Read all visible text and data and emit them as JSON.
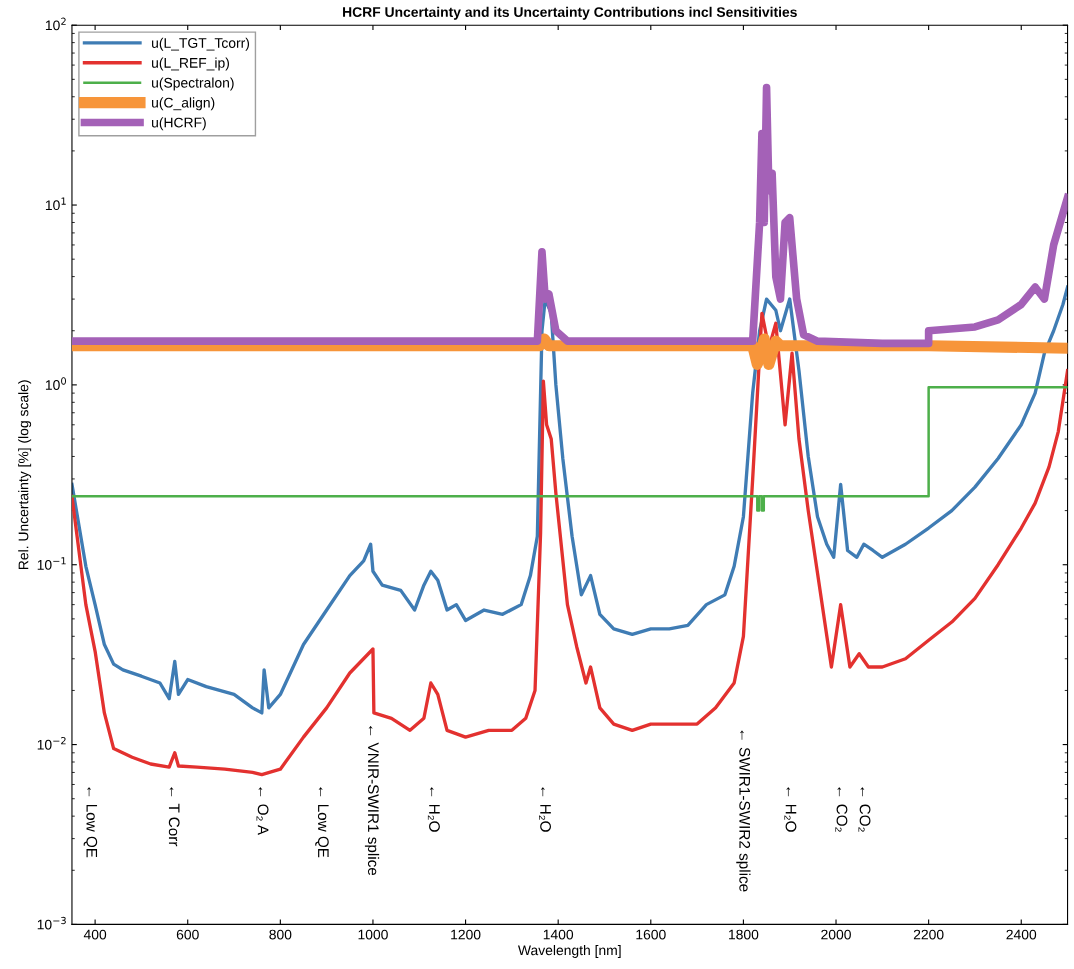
{
  "chart_data": {
    "type": "line",
    "title": "HCRF Uncertainty and its Uncertainty Contributions incl Sensitivities",
    "xlabel": "Wavelength [nm]",
    "ylabel": "Rel. Uncertainty [%] (log scale)",
    "log": "y",
    "grid": false,
    "legend": "top left",
    "marker": "none",
    "line_style": "solid",
    "xlim": [
      350,
      2500
    ],
    "xticks": [
      400,
      600,
      800,
      1000,
      1200,
      1400,
      1600,
      1800,
      2000,
      2200,
      2400
    ],
    "ylim": [
      0.001,
      100
    ],
    "yticks": [
      {
        "value": 0.001,
        "label": "10$^{−3}$"
      },
      {
        "value": 0.01,
        "label": "10$^{−2}$"
      },
      {
        "value": 0.1,
        "label": "10$^{−1}$"
      },
      {
        "value": 1,
        "label": "10$^{0}$"
      },
      {
        "value": 10,
        "label": "10$^{1}$"
      },
      {
        "value": 100,
        "label": "10$^{2}$"
      }
    ],
    "series": [
      {
        "name": "u(L_TGT_Tcorr)",
        "color": "#3f7cb4",
        "x": [
          350,
          380,
          400,
          420,
          440,
          460,
          500,
          540,
          560,
          572,
          580,
          600,
          640,
          700,
          740,
          760,
          765,
          775,
          800,
          850,
          900,
          950,
          980,
          995,
          1000,
          1020,
          1060,
          1090,
          1110,
          1125,
          1140,
          1160,
          1180,
          1200,
          1240,
          1280,
          1320,
          1340,
          1355,
          1365,
          1372,
          1385,
          1395,
          1410,
          1430,
          1450,
          1470,
          1490,
          1520,
          1560,
          1600,
          1640,
          1680,
          1720,
          1760,
          1780,
          1800,
          1820,
          1835,
          1850,
          1870,
          1880,
          1900,
          1920,
          1940,
          1960,
          1980,
          1995,
          2010,
          2025,
          2045,
          2060,
          2080,
          2100,
          2150,
          2200,
          2250,
          2300,
          2350,
          2400,
          2430,
          2450,
          2470,
          2490,
          2500
        ],
        "values": [
          0.28,
          0.098,
          0.06,
          0.036,
          0.028,
          0.026,
          0.024,
          0.022,
          0.018,
          0.029,
          0.019,
          0.023,
          0.021,
          0.019,
          0.016,
          0.015,
          0.026,
          0.016,
          0.019,
          0.036,
          0.056,
          0.087,
          0.105,
          0.13,
          0.092,
          0.077,
          0.072,
          0.056,
          0.077,
          0.092,
          0.082,
          0.056,
          0.06,
          0.049,
          0.056,
          0.053,
          0.06,
          0.087,
          0.144,
          2.0,
          3.0,
          2.5,
          1.0,
          0.39,
          0.144,
          0.068,
          0.087,
          0.053,
          0.044,
          0.041,
          0.044,
          0.044,
          0.046,
          0.06,
          0.068,
          0.098,
          0.185,
          0.9,
          2.0,
          3.0,
          2.6,
          2.0,
          3.0,
          1.2,
          0.4,
          0.185,
          0.13,
          0.11,
          0.28,
          0.12,
          0.11,
          0.13,
          0.12,
          0.11,
          0.13,
          0.16,
          0.2,
          0.27,
          0.39,
          0.6,
          0.9,
          1.5,
          2.0,
          2.8,
          3.5
        ]
      },
      {
        "name": "u(L_REF_ip)",
        "color": "#e3312f",
        "x": [
          350,
          380,
          400,
          420,
          440,
          480,
          520,
          560,
          572,
          580,
          620,
          680,
          740,
          760,
          800,
          850,
          900,
          950,
          1000,
          1002,
          1040,
          1080,
          1110,
          1125,
          1140,
          1160,
          1200,
          1250,
          1300,
          1330,
          1350,
          1362,
          1368,
          1375,
          1385,
          1395,
          1420,
          1440,
          1460,
          1470,
          1490,
          1520,
          1560,
          1600,
          1640,
          1700,
          1740,
          1780,
          1800,
          1820,
          1840,
          1855,
          1870,
          1890,
          1905,
          1920,
          1940,
          1960,
          1990,
          2010,
          2030,
          2050,
          2070,
          2100,
          2150,
          2200,
          2250,
          2300,
          2350,
          2400,
          2430,
          2460,
          2480,
          2500
        ],
        "values": [
          0.24,
          0.06,
          0.033,
          0.015,
          0.0095,
          0.0085,
          0.0078,
          0.0075,
          0.009,
          0.0076,
          0.0075,
          0.0073,
          0.007,
          0.0068,
          0.0073,
          0.011,
          0.016,
          0.025,
          0.034,
          0.015,
          0.014,
          0.012,
          0.014,
          0.022,
          0.019,
          0.012,
          0.011,
          0.012,
          0.012,
          0.014,
          0.02,
          0.15,
          1.05,
          0.6,
          0.5,
          0.25,
          0.06,
          0.035,
          0.022,
          0.027,
          0.016,
          0.013,
          0.012,
          0.013,
          0.013,
          0.013,
          0.016,
          0.022,
          0.04,
          0.3,
          2.5,
          1.6,
          2.2,
          0.6,
          1.5,
          0.5,
          0.2,
          0.09,
          0.027,
          0.06,
          0.027,
          0.032,
          0.027,
          0.027,
          0.03,
          0.038,
          0.048,
          0.065,
          0.1,
          0.16,
          0.22,
          0.35,
          0.55,
          1.2
        ]
      },
      {
        "name": "u(Spectralon)",
        "color": "#4daf4a",
        "x": [
          350,
          1830,
          1830,
          1834,
          1834,
          1840,
          1840,
          1844,
          1844,
          2200,
          2200,
          2500
        ],
        "values": [
          0.24,
          0.24,
          0.2,
          0.2,
          0.24,
          0.24,
          0.2,
          0.2,
          0.24,
          0.24,
          0.97,
          0.97
        ]
      },
      {
        "name": "u(C_align)",
        "color": "#f7953a",
        "x": [
          350,
          1360,
          1370,
          1380,
          1820,
          1830,
          1845,
          1855,
          1870,
          1880,
          2200,
          2500
        ],
        "values": [
          1.65,
          1.65,
          1.8,
          1.65,
          1.65,
          1.3,
          1.8,
          1.3,
          1.75,
          1.65,
          1.65,
          1.6
        ]
      },
      {
        "name": "u(HCRF)",
        "color": "#a461b7",
        "x": [
          350,
          1355,
          1365,
          1372,
          1380,
          1395,
          1420,
          1820,
          1835,
          1840,
          1845,
          1850,
          1855,
          1862,
          1870,
          1880,
          1890,
          1900,
          1915,
          1930,
          1960,
          2100,
          2200,
          2200,
          2300,
          2350,
          2400,
          2430,
          2450,
          2470,
          2500
        ],
        "values": [
          1.75,
          1.75,
          5.5,
          3.0,
          3.2,
          2.0,
          1.75,
          1.75,
          8,
          25,
          8,
          45,
          12,
          15,
          4,
          3,
          8,
          8.5,
          3,
          1.9,
          1.75,
          1.7,
          1.7,
          2.0,
          2.1,
          2.3,
          2.8,
          3.5,
          3.0,
          6,
          11
        ]
      }
    ],
    "annotations": [
      "← Low QE",
      "← T Corr",
      "← O₂ A",
      "← Low QE",
      "← VNIR-SWIR1 splice",
      "← H₂O",
      "← H₂O",
      "← SWIR1-SWIR2 splice",
      "← H₂O",
      "← CO₂",
      "← CO₂"
    ]
  }
}
